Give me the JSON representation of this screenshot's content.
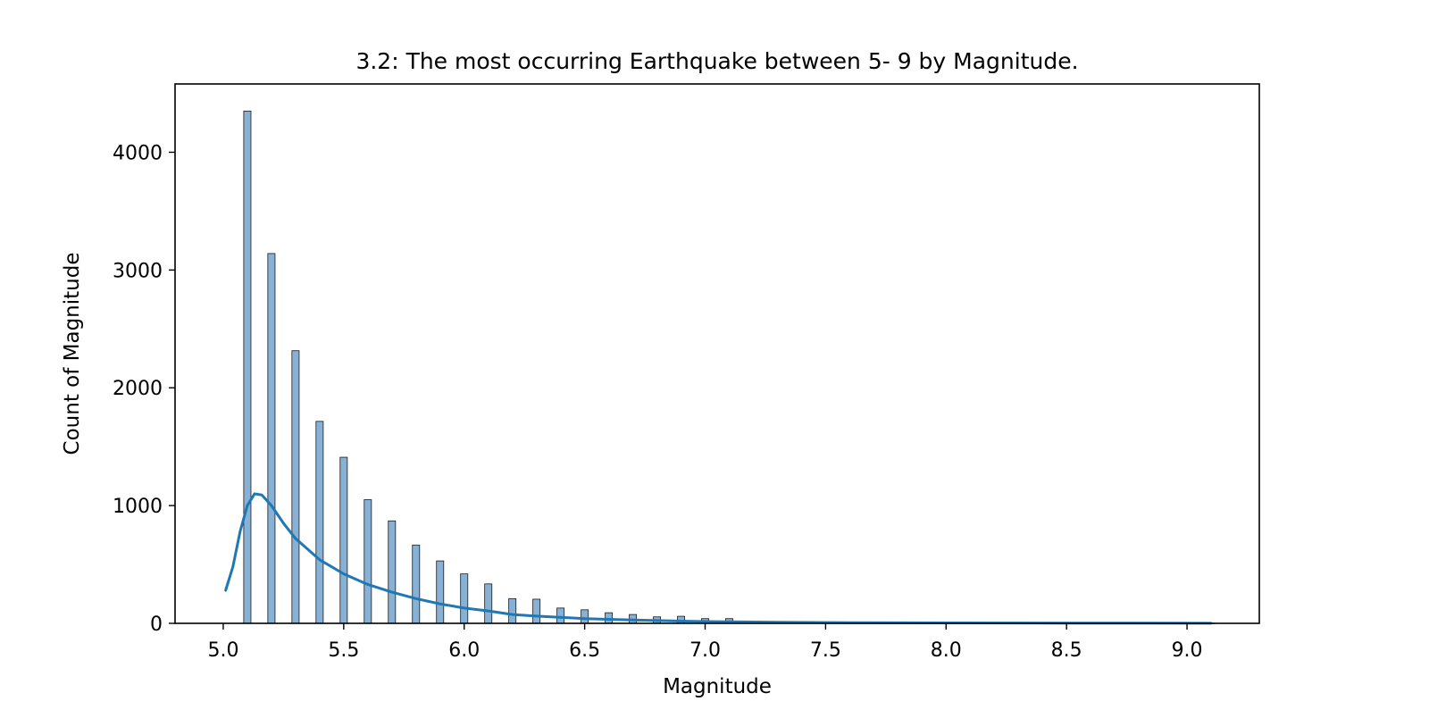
{
  "chart_data": {
    "type": "bar",
    "title": "3.2: The most occurring Earthquake between 5- 9 by Magnitude.",
    "xlabel": "Magnitude",
    "ylabel": "Count of Magnitude",
    "xlim": [
      4.8,
      9.3
    ],
    "ylim": [
      0,
      4580
    ],
    "xticks": [
      5.0,
      5.5,
      6.0,
      6.5,
      7.0,
      7.5,
      8.0,
      8.5,
      9.0
    ],
    "xtick_labels": [
      "5.0",
      "5.5",
      "6.0",
      "6.5",
      "7.0",
      "7.5",
      "8.0",
      "8.5",
      "9.0"
    ],
    "yticks": [
      0,
      1000,
      2000,
      3000,
      4000
    ],
    "ytick_labels": [
      "0",
      "1000",
      "2000",
      "3000",
      "4000"
    ],
    "bar_width": 0.03,
    "grid": false,
    "colors": {
      "bar_fill": "#87b2d6",
      "bar_edge": "#1a1a1a",
      "kde_line": "#1f77b4"
    },
    "bars": {
      "x": [
        5.1,
        5.2,
        5.3,
        5.4,
        5.5,
        5.6,
        5.7,
        5.8,
        5.9,
        6.0,
        6.1,
        6.2,
        6.3,
        6.4,
        6.5,
        6.6,
        6.7,
        6.8,
        6.9,
        7.0,
        7.1,
        7.2,
        7.3,
        7.4,
        7.5,
        7.6,
        7.7,
        7.8,
        7.9,
        8.0,
        8.1,
        8.2,
        8.3,
        8.4,
        8.6,
        8.8,
        9.1
      ],
      "values": [
        4350,
        3140,
        2315,
        1715,
        1410,
        1050,
        870,
        665,
        530,
        420,
        335,
        210,
        205,
        130,
        115,
        90,
        75,
        55,
        60,
        40,
        40,
        15,
        15,
        10,
        10,
        8,
        6,
        5,
        4,
        4,
        3,
        2,
        2,
        1,
        1,
        1,
        2
      ]
    },
    "kde": {
      "x": [
        5.01,
        5.04,
        5.07,
        5.1,
        5.13,
        5.16,
        5.2,
        5.25,
        5.3,
        5.4,
        5.5,
        5.6,
        5.7,
        5.8,
        5.9,
        6.0,
        6.1,
        6.2,
        6.3,
        6.5,
        6.7,
        7.0,
        7.3,
        7.6,
        8.0,
        8.5,
        9.1
      ],
      "y": [
        280,
        480,
        780,
        1000,
        1100,
        1090,
        1000,
        850,
        720,
        540,
        420,
        330,
        265,
        210,
        165,
        130,
        105,
        75,
        62,
        40,
        28,
        15,
        9,
        6,
        4,
        2,
        1
      ]
    }
  }
}
